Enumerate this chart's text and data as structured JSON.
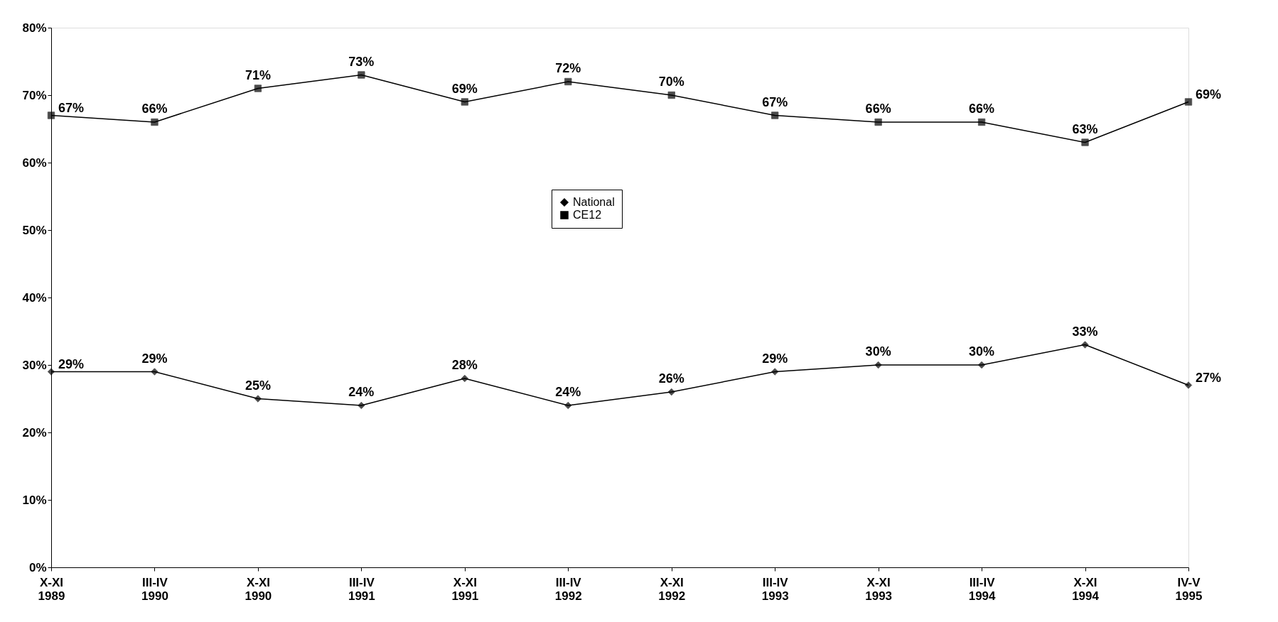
{
  "chart_data": {
    "type": "line",
    "categories": [
      "X-XI 1989",
      "III-IV 1990",
      "X-XI 1990",
      "III-IV 1991",
      "X-XI 1991",
      "III-IV 1992",
      "X-XI 1992",
      "III-IV 1993",
      "X-XI 1993",
      "III-IV 1994",
      "X-XI 1994",
      "IV-V 1995"
    ],
    "series": [
      {
        "name": "National",
        "color": "#000000",
        "marker": "diamond",
        "values": [
          29,
          29,
          25,
          24,
          28,
          24,
          26,
          29,
          30,
          30,
          33,
          27
        ],
        "value_labels": [
          "29%",
          "29%",
          "25%",
          "24%",
          "28%",
          "24%",
          "26%",
          "29%",
          "30%",
          "30%",
          "33%",
          "27%"
        ]
      },
      {
        "name": "CE12",
        "color": "#000000",
        "marker": "square",
        "values": [
          67,
          66,
          71,
          73,
          69,
          72,
          70,
          67,
          66,
          66,
          63,
          69
        ],
        "value_labels": [
          "67%",
          "66%",
          "71%",
          "73%",
          "69%",
          "72%",
          "70%",
          "67%",
          "66%",
          "66%",
          "63%",
          "69%"
        ]
      }
    ],
    "ylim": [
      0,
      80
    ],
    "yticks": [
      {
        "value": 0,
        "label": "0%"
      },
      {
        "value": 10,
        "label": "10%"
      },
      {
        "value": 20,
        "label": "20%"
      },
      {
        "value": 30,
        "label": "30%"
      },
      {
        "value": 40,
        "label": "40%"
      },
      {
        "value": 50,
        "label": "50%"
      },
      {
        "value": 60,
        "label": "60%"
      },
      {
        "value": 70,
        "label": "70%"
      },
      {
        "value": 80,
        "label": "80%"
      }
    ],
    "grid": false,
    "legend": "top",
    "line_style": "solid"
  }
}
